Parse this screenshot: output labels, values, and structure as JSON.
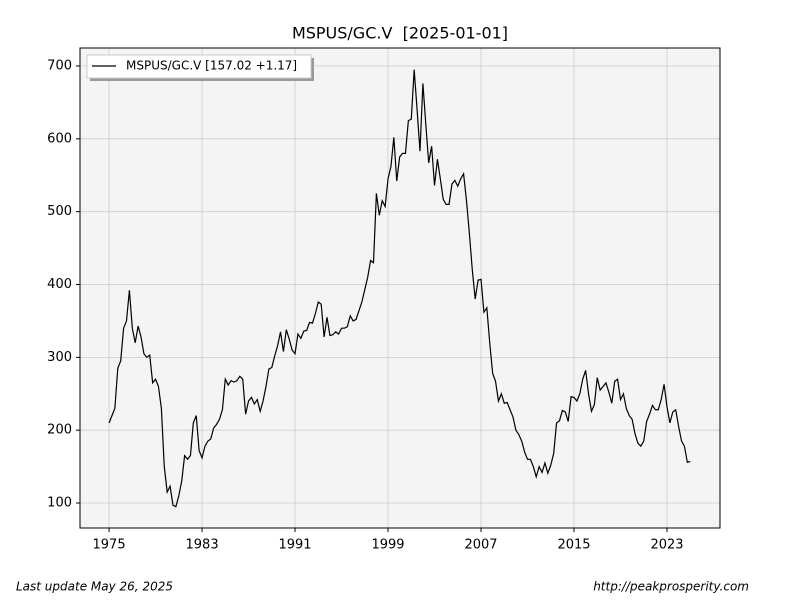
{
  "chart_data": {
    "type": "line",
    "title": "MSPUS/GC.V  [2025-01-01]",
    "legend_label": "MSPUS/GC.V [157.02 +1.17]",
    "legend_position": "upper left",
    "footer_left": "Last update May 26, 2025",
    "footer_right": "http://peakprosperity.com",
    "grid": true,
    "background": "#f4f4f4",
    "xlim": [
      1972.5,
      2027.56
    ],
    "xticks": [
      1975,
      1983,
      1991,
      1999,
      2007,
      2015,
      2023
    ],
    "ylim": [
      65.7,
      724.7
    ],
    "yticks": [
      100,
      200,
      300,
      400,
      500,
      600,
      700
    ],
    "x": [
      1975.0,
      1975.25,
      1975.5,
      1975.75,
      1976.0,
      1976.25,
      1976.5,
      1976.75,
      1977.0,
      1977.25,
      1977.5,
      1977.75,
      1978.0,
      1978.25,
      1978.5,
      1978.75,
      1979.0,
      1979.25,
      1979.5,
      1979.75,
      1980.0,
      1980.25,
      1980.5,
      1980.75,
      1981.0,
      1981.25,
      1981.5,
      1981.75,
      1982.0,
      1982.25,
      1982.5,
      1982.75,
      1983.0,
      1983.25,
      1983.5,
      1983.75,
      1984.0,
      1984.25,
      1984.5,
      1984.75,
      1985.0,
      1985.25,
      1985.5,
      1985.75,
      1986.0,
      1986.25,
      1986.5,
      1986.75,
      1987.0,
      1987.25,
      1987.5,
      1987.75,
      1988.0,
      1988.25,
      1988.5,
      1988.75,
      1989.0,
      1989.25,
      1989.5,
      1989.75,
      1990.0,
      1990.25,
      1990.5,
      1990.75,
      1991.0,
      1991.25,
      1991.5,
      1991.75,
      1992.0,
      1992.25,
      1992.5,
      1992.75,
      1993.0,
      1993.25,
      1993.5,
      1993.75,
      1994.0,
      1994.25,
      1994.5,
      1994.75,
      1995.0,
      1995.25,
      1995.5,
      1995.75,
      1996.0,
      1996.25,
      1996.5,
      1996.75,
      1997.0,
      1997.25,
      1997.5,
      1997.75,
      1998.0,
      1998.25,
      1998.5,
      1998.75,
      1999.0,
      1999.25,
      1999.5,
      1999.75,
      2000.0,
      2000.25,
      2000.5,
      2000.75,
      2001.0,
      2001.25,
      2001.5,
      2001.75,
      2002.0,
      2002.25,
      2002.5,
      2002.75,
      2003.0,
      2003.25,
      2003.5,
      2003.75,
      2004.0,
      2004.25,
      2004.5,
      2004.75,
      2005.0,
      2005.25,
      2005.5,
      2005.75,
      2006.0,
      2006.25,
      2006.5,
      2006.75,
      2007.0,
      2007.25,
      2007.5,
      2007.75,
      2008.0,
      2008.25,
      2008.5,
      2008.75,
      2009.0,
      2009.25,
      2009.5,
      2009.75,
      2010.0,
      2010.25,
      2010.5,
      2010.75,
      2011.0,
      2011.25,
      2011.5,
      2011.75,
      2012.0,
      2012.25,
      2012.5,
      2012.75,
      2013.0,
      2013.25,
      2013.5,
      2013.75,
      2014.0,
      2014.25,
      2014.5,
      2014.75,
      2015.0,
      2015.25,
      2015.5,
      2015.75,
      2016.0,
      2016.25,
      2016.5,
      2016.75,
      2017.0,
      2017.25,
      2017.5,
      2017.75,
      2018.0,
      2018.25,
      2018.5,
      2018.75,
      2019.0,
      2019.25,
      2019.5,
      2019.75,
      2020.0,
      2020.25,
      2020.5,
      2020.75,
      2021.0,
      2021.25,
      2021.5,
      2021.75,
      2022.0,
      2022.25,
      2022.5,
      2022.75,
      2023.0,
      2023.25,
      2023.5,
      2023.75,
      2024.0,
      2024.25,
      2024.5,
      2024.75,
      2025.0
    ],
    "series": [
      {
        "name": "MSPUS/GC.V",
        "color": "#000000",
        "values": [
          210,
          220,
          230,
          285,
          295,
          340,
          350,
          392,
          340,
          320,
          343,
          328,
          305,
          300,
          303,
          265,
          270,
          260,
          230,
          150,
          115,
          123,
          97,
          95,
          110,
          130,
          165,
          160,
          165,
          210,
          220,
          172,
          162,
          178,
          185,
          188,
          203,
          208,
          215,
          228,
          270,
          262,
          268,
          266,
          268,
          274,
          270,
          222,
          240,
          245,
          236,
          242,
          226,
          240,
          260,
          284,
          286,
          302,
          316,
          335,
          308,
          338,
          325,
          310,
          305,
          332,
          326,
          336,
          337,
          348,
          347,
          360,
          376,
          373,
          328,
          355,
          330,
          331,
          335,
          332,
          340,
          340,
          342,
          357,
          350,
          352,
          364,
          376,
          393,
          410,
          433,
          430,
          525,
          495,
          515,
          507,
          545,
          562,
          602,
          542,
          575,
          580,
          580,
          625,
          627,
          695,
          640,
          583,
          676,
          620,
          567,
          590,
          536,
          572,
          545,
          517,
          510,
          510,
          538,
          543,
          535,
          545,
          552,
          515,
          470,
          420,
          380,
          406,
          407,
          362,
          368,
          320,
          278,
          267,
          240,
          250,
          237,
          238,
          228,
          218,
          200,
          194,
          185,
          170,
          160,
          160,
          150,
          136,
          150,
          142,
          155,
          141,
          152,
          168,
          210,
          213,
          227,
          225,
          212,
          246,
          245,
          240,
          250,
          270,
          282,
          250,
          226,
          235,
          272,
          255,
          260,
          265,
          252,
          237,
          267,
          270,
          242,
          250,
          230,
          220,
          215,
          195,
          182,
          178,
          185,
          212,
          222,
          234,
          228,
          228,
          242,
          263,
          232,
          210,
          225,
          228,
          205,
          185,
          178,
          156,
          157
        ]
      }
    ]
  }
}
